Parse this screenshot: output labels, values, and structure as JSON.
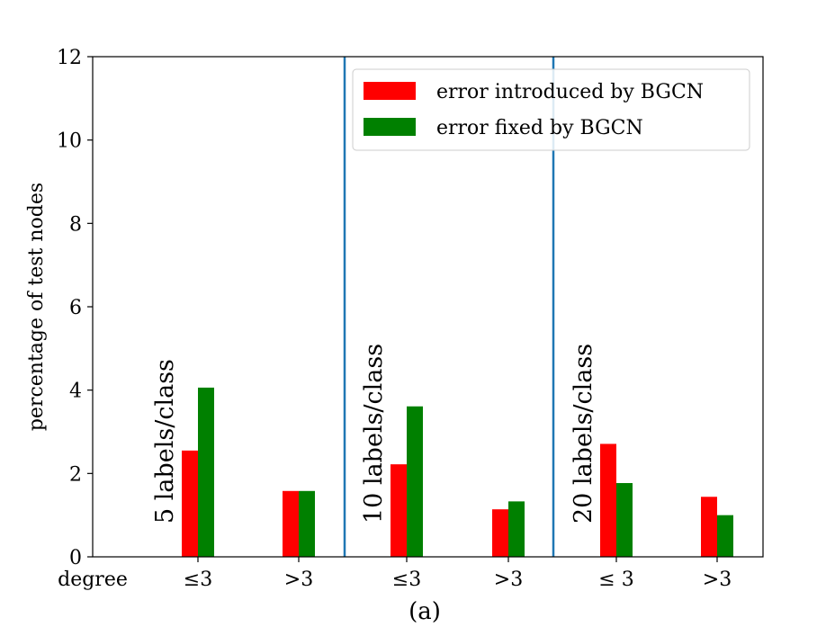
{
  "chart_data": {
    "type": "bar",
    "caption": "(a)",
    "ylabel": "percentage of test nodes",
    "xlabel_prefix": "degree",
    "ylim": [
      0,
      12
    ],
    "yticks": [
      0,
      2,
      4,
      6,
      8,
      10,
      12
    ],
    "grid": false,
    "legend_position": "top-right",
    "categories": [
      "≤3",
      ">3",
      "≤3",
      ">3",
      "≤ 3",
      ">3"
    ],
    "groups": [
      {
        "label": "5 labels/class"
      },
      {
        "label": "10 labels/class"
      },
      {
        "label": "20 labels/class"
      }
    ],
    "series": [
      {
        "name": "error introduced by BGCN",
        "color": "#ff0000",
        "values": [
          2.55,
          1.58,
          2.22,
          1.14,
          2.71,
          1.44
        ]
      },
      {
        "name": "error fixed by BGCN",
        "color": "#008000",
        "values": [
          4.06,
          1.58,
          3.61,
          1.33,
          1.77,
          1.0
        ]
      }
    ],
    "separator_color": "#1f77b4"
  }
}
